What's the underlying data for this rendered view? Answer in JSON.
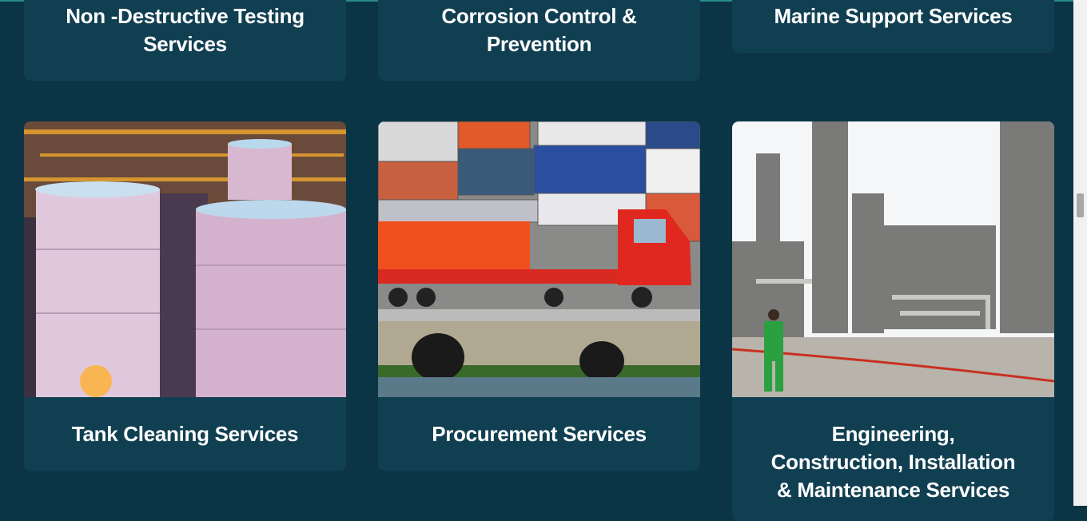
{
  "cards": [
    {
      "title": [
        "Non -Destructive Testing",
        "Services"
      ]
    },
    {
      "title": [
        "Corrosion Control &",
        "Prevention"
      ]
    },
    {
      "title": [
        "Marine Support Services"
      ]
    },
    {
      "title": [
        "Tank Cleaning Services"
      ]
    },
    {
      "title": [
        "Procurement Services"
      ]
    },
    {
      "title": [
        "Engineering,",
        "Construction, Installation",
        "& Maintenance Services"
      ]
    }
  ]
}
